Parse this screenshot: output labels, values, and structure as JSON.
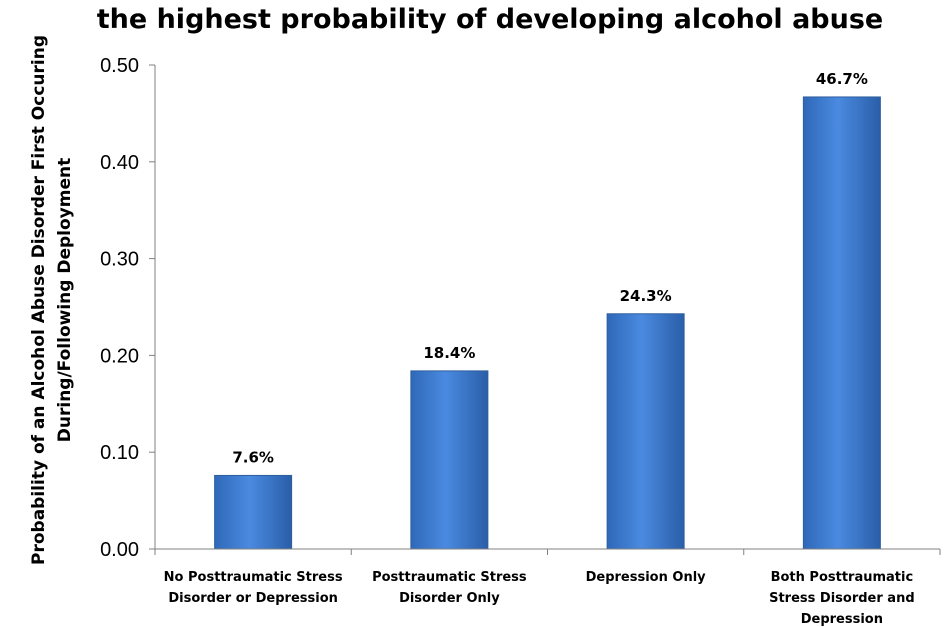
{
  "chart_data": {
    "type": "bar",
    "title": "the highest probability of developing alcohol abuse",
    "ylabel": [
      "Probability of an Alcohol Abuse Disorder First Occuring",
      "During/Following Deployment"
    ],
    "xlabel": "",
    "ylim": [
      0,
      0.5
    ],
    "yticks": [
      "0.00",
      "0.10",
      "0.20",
      "0.30",
      "0.40",
      "0.50"
    ],
    "categories": [
      [
        "No Posttraumatic Stress",
        "Disorder or Depression"
      ],
      [
        "Posttraumatic Stress",
        "Disorder Only"
      ],
      [
        "Depression Only"
      ],
      [
        "Both Posttraumatic",
        "Stress Disorder and",
        "Depression"
      ]
    ],
    "values": [
      0.076,
      0.184,
      0.243,
      0.467
    ],
    "data_labels": [
      "7.6%",
      "18.4%",
      "24.3%",
      "46.7%"
    ],
    "bar_color": "#3f7fd6",
    "legend": "none",
    "grid": false
  }
}
